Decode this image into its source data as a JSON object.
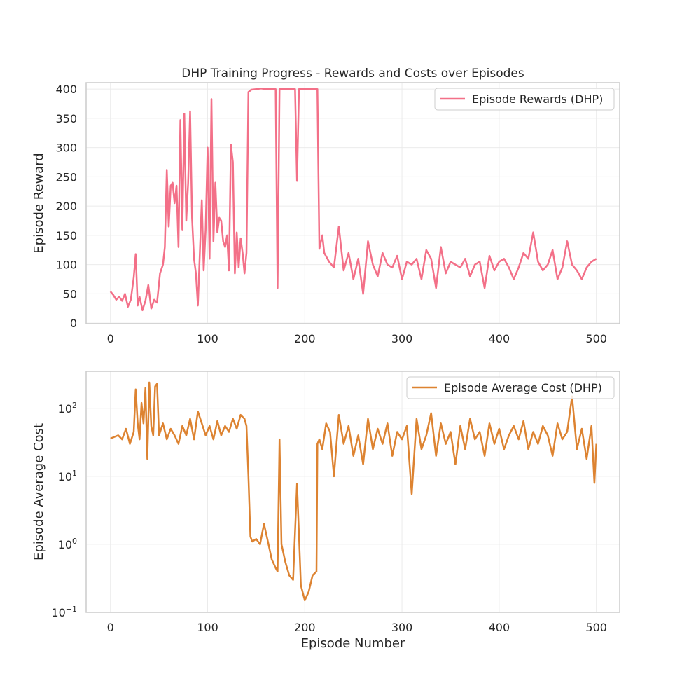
{
  "chart_data": [
    {
      "type": "line",
      "title": "DHP Training Progress - Rewards and Costs over Episodes",
      "xlabel": "",
      "ylabel": "Episode Reward",
      "xlim": [
        -25,
        524
      ],
      "ylim": [
        -1,
        411
      ],
      "xticks": [
        0,
        100,
        200,
        300,
        400,
        500
      ],
      "xtick_labels": [
        "0",
        "100",
        "200",
        "300",
        "400",
        "500"
      ],
      "yticks": [
        0,
        50,
        100,
        150,
        200,
        250,
        300,
        350,
        400
      ],
      "ytick_labels": [
        "0",
        "50",
        "100",
        "150",
        "200",
        "250",
        "300",
        "350",
        "400"
      ],
      "grid": true,
      "legend_position": "top-right",
      "color": "#f37088",
      "series": [
        {
          "name": "Episode Rewards (DHP)",
          "x": [
            0,
            3,
            6,
            9,
            12,
            15,
            18,
            21,
            24,
            26,
            28,
            30,
            33,
            36,
            39,
            42,
            45,
            48,
            51,
            54,
            56,
            58,
            60,
            62,
            64,
            66,
            68,
            70,
            72,
            74,
            76,
            78,
            80,
            82,
            84,
            86,
            88,
            90,
            92,
            94,
            96,
            98,
            100,
            102,
            104,
            106,
            108,
            110,
            112,
            114,
            116,
            118,
            120,
            122,
            124,
            126,
            128,
            130,
            132,
            134,
            136,
            138,
            140,
            142,
            145,
            150,
            155,
            160,
            165,
            170,
            172,
            174,
            176,
            180,
            185,
            190,
            192,
            194,
            196,
            200,
            205,
            210,
            213,
            215,
            218,
            220,
            225,
            230,
            235,
            240,
            245,
            250,
            255,
            260,
            265,
            270,
            275,
            280,
            285,
            290,
            295,
            300,
            305,
            310,
            315,
            320,
            325,
            330,
            335,
            340,
            345,
            350,
            355,
            360,
            365,
            370,
            375,
            380,
            385,
            390,
            395,
            400,
            405,
            410,
            415,
            420,
            425,
            430,
            435,
            440,
            445,
            450,
            455,
            460,
            465,
            470,
            475,
            480,
            485,
            490,
            495,
            500
          ],
          "values": [
            54,
            48,
            40,
            45,
            38,
            50,
            28,
            40,
            78,
            118,
            30,
            45,
            22,
            38,
            65,
            25,
            40,
            35,
            85,
            100,
            130,
            262,
            165,
            235,
            240,
            205,
            235,
            130,
            347,
            160,
            358,
            175,
            240,
            362,
            180,
            110,
            85,
            30,
            120,
            210,
            90,
            160,
            300,
            110,
            383,
            140,
            240,
            155,
            180,
            175,
            140,
            130,
            150,
            90,
            305,
            275,
            85,
            155,
            95,
            145,
            120,
            85,
            120,
            395,
            399,
            400,
            401,
            400,
            400,
            400,
            60,
            400,
            400,
            400,
            400,
            400,
            243,
            400,
            400,
            400,
            400,
            400,
            400,
            127,
            150,
            120,
            105,
            95,
            165,
            90,
            120,
            75,
            110,
            50,
            140,
            100,
            80,
            120,
            100,
            95,
            115,
            75,
            105,
            100,
            110,
            75,
            125,
            110,
            60,
            130,
            85,
            105,
            100,
            95,
            110,
            80,
            100,
            105,
            60,
            115,
            90,
            105,
            110,
            95,
            75,
            95,
            120,
            110,
            155,
            105,
            90,
            100,
            125,
            75,
            95,
            140,
            100,
            90,
            75,
            95,
            105,
            110
          ]
        }
      ]
    },
    {
      "type": "line",
      "title": "",
      "xlabel": "Episode Number",
      "ylabel": "Episode Average Cost",
      "yscale": "log",
      "xlim": [
        -25,
        524
      ],
      "ylim": [
        0.1,
        350
      ],
      "xticks": [
        0,
        100,
        200,
        300,
        400,
        500
      ],
      "xtick_labels": [
        "0",
        "100",
        "200",
        "300",
        "400",
        "500"
      ],
      "yticks": [
        0.1,
        1,
        10,
        100
      ],
      "ytick_labels": [
        [
          "10",
          "−1"
        ],
        [
          "10",
          "0"
        ],
        [
          "10",
          "1"
        ],
        [
          "10",
          "2"
        ]
      ],
      "grid": true,
      "legend_position": "top-right",
      "color": "#dd8331",
      "series": [
        {
          "name": "Episode Average Cost (DHP)",
          "x": [
            0,
            4,
            8,
            12,
            16,
            20,
            24,
            26,
            28,
            30,
            32,
            34,
            36,
            38,
            40,
            42,
            44,
            46,
            48,
            50,
            54,
            58,
            62,
            66,
            70,
            74,
            78,
            82,
            86,
            90,
            94,
            98,
            102,
            106,
            110,
            114,
            118,
            122,
            126,
            130,
            134,
            138,
            140,
            142,
            144,
            146,
            150,
            154,
            158,
            162,
            166,
            170,
            172,
            174,
            176,
            180,
            184,
            188,
            192,
            196,
            200,
            204,
            208,
            212,
            213,
            215,
            218,
            222,
            226,
            230,
            235,
            240,
            245,
            250,
            255,
            260,
            265,
            270,
            275,
            280,
            285,
            290,
            295,
            300,
            305,
            310,
            315,
            320,
            325,
            330,
            335,
            340,
            345,
            350,
            355,
            360,
            365,
            370,
            375,
            380,
            385,
            390,
            395,
            400,
            405,
            410,
            415,
            420,
            425,
            430,
            435,
            440,
            445,
            450,
            455,
            460,
            465,
            470,
            475,
            480,
            485,
            490,
            495,
            498,
            500
          ],
          "values": [
            36,
            38,
            40,
            35,
            50,
            30,
            45,
            190,
            60,
            35,
            120,
            60,
            200,
            18,
            240,
            55,
            40,
            210,
            230,
            40,
            60,
            35,
            50,
            40,
            30,
            55,
            40,
            70,
            35,
            90,
            60,
            40,
            55,
            35,
            65,
            40,
            55,
            45,
            70,
            50,
            80,
            70,
            55,
            10,
            1.3,
            1.1,
            1.2,
            1.0,
            2.0,
            1.1,
            0.6,
            0.45,
            0.4,
            35,
            1.0,
            0.55,
            0.35,
            0.3,
            7.8,
            0.25,
            0.15,
            0.2,
            0.35,
            0.4,
            30,
            35,
            25,
            60,
            45,
            10,
            80,
            30,
            55,
            20,
            40,
            15,
            70,
            25,
            50,
            30,
            60,
            20,
            45,
            35,
            55,
            5.5,
            70,
            25,
            40,
            85,
            20,
            60,
            30,
            45,
            15,
            55,
            25,
            70,
            35,
            45,
            20,
            60,
            30,
            50,
            25,
            40,
            55,
            35,
            65,
            25,
            45,
            30,
            55,
            40,
            20,
            60,
            35,
            45,
            150,
            25,
            50,
            18,
            55,
            8,
            30
          ]
        }
      ]
    }
  ]
}
